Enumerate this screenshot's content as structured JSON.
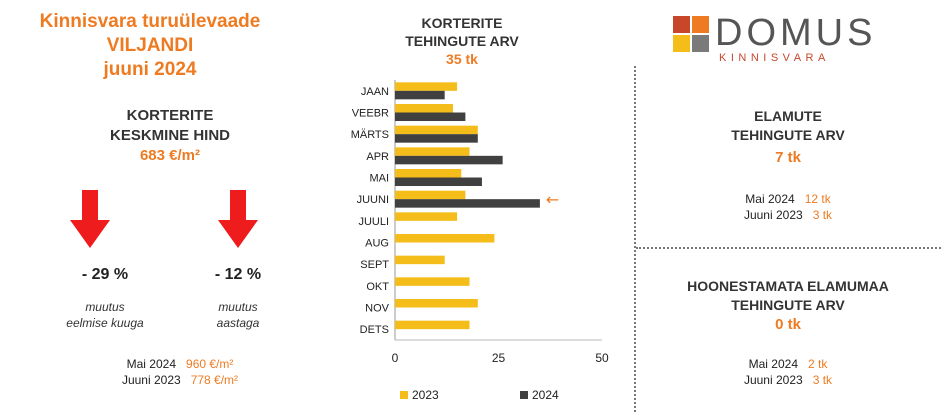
{
  "left": {
    "title_lines": [
      "Kinnisvara turuülevaade",
      "VILJANDI",
      "juuni 2024"
    ],
    "kpi_head_lines": [
      "KORTERITE",
      "KESKMINE HIND"
    ],
    "kpi_value": "683 €/m²",
    "changes": [
      {
        "value": "- 29 %",
        "caption_lines": [
          "muutus",
          "eelmise kuuga"
        ]
      },
      {
        "value": "- 12 %",
        "caption_lines": [
          "muutus",
          "aastaga"
        ]
      }
    ],
    "compare": [
      {
        "label": "Mai 2024",
        "value": "960 €/m²"
      },
      {
        "label": "Juuni 2023",
        "value": "778 €/m²"
      }
    ]
  },
  "chart_header": {
    "title_lines": [
      "KORTERITE",
      "TEHINGUTE ARV"
    ],
    "count": "35 tk"
  },
  "chart_data": {
    "type": "bar",
    "orientation": "horizontal",
    "categories": [
      "JAAN",
      "VEEBR",
      "MÄRTS",
      "APR",
      "MAI",
      "JUUNI",
      "JUULI",
      "AUG",
      "SEPT",
      "OKT",
      "NOV",
      "DETS"
    ],
    "series": [
      {
        "name": "2023",
        "color": "#f5bd19",
        "values": [
          15,
          14,
          20,
          18,
          16,
          17,
          15,
          24,
          12,
          18,
          20,
          18
        ]
      },
      {
        "name": "2024",
        "color": "#404040",
        "values": [
          12,
          17,
          20,
          26,
          21,
          35,
          null,
          null,
          null,
          null,
          null,
          null
        ]
      }
    ],
    "xlim": [
      0,
      50
    ],
    "xticks": [
      0,
      25,
      50
    ],
    "highlight_category": "JUUNI",
    "annotation": "←",
    "legend_position": "bottom",
    "grid": false
  },
  "logo": {
    "word": "DOMUS",
    "sub": "KINNISVARA",
    "colors": [
      "#c8462a",
      "#ee7b22",
      "#f5bd19",
      "#7a7a7a"
    ]
  },
  "right": [
    {
      "head_lines": [
        "ELAMUTE",
        "TEHINGUTE ARV"
      ],
      "value": "7 tk",
      "compare": [
        {
          "label": "Mai 2024",
          "value": "12 tk"
        },
        {
          "label": "Juuni 2023",
          "value": "3 tk"
        }
      ]
    },
    {
      "head_lines": [
        "HOONESTAMATA ELAMUMAA",
        "TEHINGUTE ARV"
      ],
      "value": "0 tk",
      "compare": [
        {
          "label": "Mai 2024",
          "value": "2 tk"
        },
        {
          "label": "Juuni 2023",
          "value": "3 tk"
        }
      ]
    }
  ],
  "colors": {
    "accent": "#ee7b22",
    "arrow": "#ee1c1c"
  }
}
